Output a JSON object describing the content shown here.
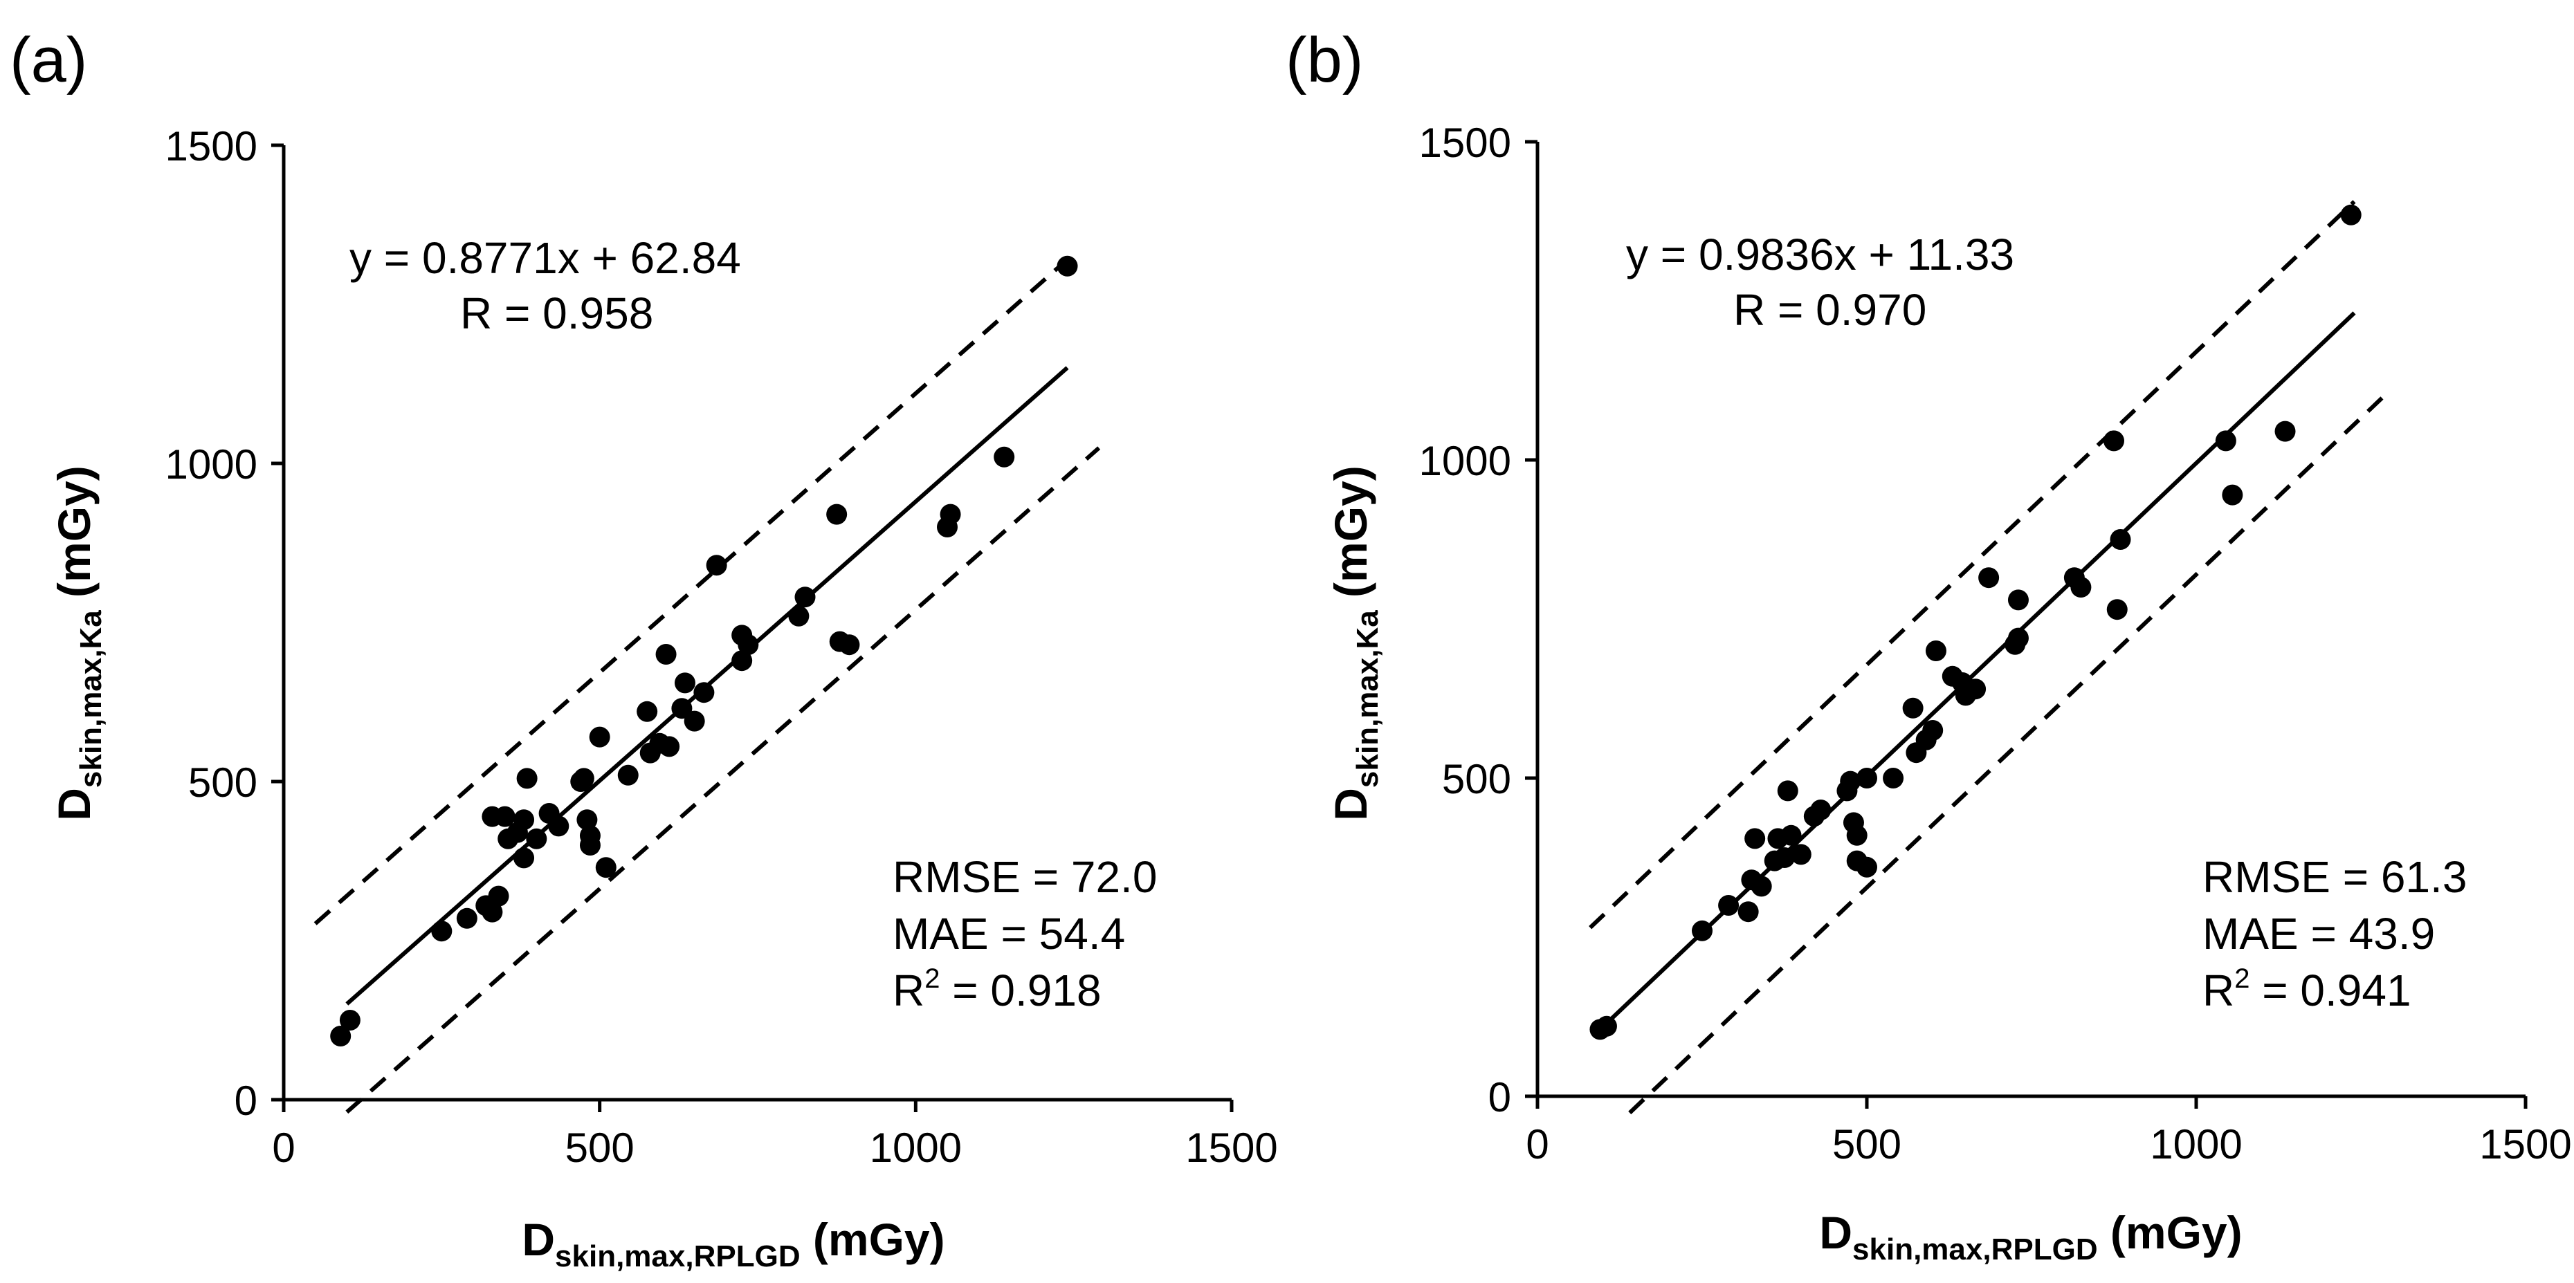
{
  "colors": {
    "ink": "#000000",
    "background": "#ffffff"
  },
  "chart_data": [
    {
      "type": "scatter",
      "panel_label": "(a)",
      "xlabel": {
        "main": "D",
        "sub": "skin,max,RPLGD",
        "unit": " (mGy)"
      },
      "ylabel": {
        "main": "D",
        "sub": "skin,max,Ka",
        "unit": " (mGy)"
      },
      "xlim": [
        0,
        1500
      ],
      "ylim": [
        0,
        1500
      ],
      "xticks": [
        "0",
        "500",
        "1000",
        "1500"
      ],
      "yticks": [
        "0",
        "500",
        "1000",
        "1500"
      ],
      "grid": false,
      "fit": {
        "slope": 0.8771,
        "intercept": 62.84,
        "x_range": [
          100,
          1240
        ]
      },
      "band": {
        "offset": 170,
        "upper_x_range": [
          50,
          1240
        ],
        "lower_x_range": [
          100,
          1290
        ]
      },
      "equation": "y = 0.8771x + 62.84",
      "r_text": "R = 0.958",
      "stats": {
        "rmse": "RMSE = 72.0",
        "mae": "MAE = 54.4",
        "r2_prefix": "R",
        "r2_sup": "2",
        "r2_suffix": " = 0.918"
      },
      "points": [
        {
          "x": 90,
          "y": 100
        },
        {
          "x": 105,
          "y": 125
        },
        {
          "x": 250,
          "y": 265
        },
        {
          "x": 290,
          "y": 285
        },
        {
          "x": 320,
          "y": 305
        },
        {
          "x": 330,
          "y": 295
        },
        {
          "x": 340,
          "y": 320
        },
        {
          "x": 330,
          "y": 445
        },
        {
          "x": 350,
          "y": 445
        },
        {
          "x": 355,
          "y": 410
        },
        {
          "x": 370,
          "y": 420
        },
        {
          "x": 380,
          "y": 380
        },
        {
          "x": 380,
          "y": 440
        },
        {
          "x": 385,
          "y": 505
        },
        {
          "x": 400,
          "y": 410
        },
        {
          "x": 420,
          "y": 450
        },
        {
          "x": 435,
          "y": 430
        },
        {
          "x": 470,
          "y": 500
        },
        {
          "x": 475,
          "y": 505
        },
        {
          "x": 480,
          "y": 440
        },
        {
          "x": 485,
          "y": 415
        },
        {
          "x": 485,
          "y": 400
        },
        {
          "x": 500,
          "y": 570
        },
        {
          "x": 510,
          "y": 365
        },
        {
          "x": 545,
          "y": 510
        },
        {
          "x": 575,
          "y": 610
        },
        {
          "x": 580,
          "y": 545
        },
        {
          "x": 595,
          "y": 560
        },
        {
          "x": 605,
          "y": 700
        },
        {
          "x": 610,
          "y": 555
        },
        {
          "x": 630,
          "y": 615
        },
        {
          "x": 635,
          "y": 655
        },
        {
          "x": 650,
          "y": 595
        },
        {
          "x": 665,
          "y": 640
        },
        {
          "x": 685,
          "y": 840
        },
        {
          "x": 725,
          "y": 690
        },
        {
          "x": 725,
          "y": 730
        },
        {
          "x": 735,
          "y": 715
        },
        {
          "x": 815,
          "y": 760
        },
        {
          "x": 825,
          "y": 790
        },
        {
          "x": 875,
          "y": 920
        },
        {
          "x": 880,
          "y": 720
        },
        {
          "x": 895,
          "y": 715
        },
        {
          "x": 1050,
          "y": 900
        },
        {
          "x": 1055,
          "y": 920
        },
        {
          "x": 1140,
          "y": 1010
        },
        {
          "x": 1240,
          "y": 1310
        }
      ]
    },
    {
      "type": "scatter",
      "panel_label": "(b)",
      "xlabel": {
        "main": "D",
        "sub": "skin,max,RPLGD",
        "unit": " (mGy)"
      },
      "ylabel": {
        "main": "D",
        "sub": "skin,max,Ka",
        "unit": " (mGy)"
      },
      "xlim": [
        0,
        1500
      ],
      "ylim": [
        0,
        1500
      ],
      "xticks": [
        "0",
        "500",
        "1000",
        "1500"
      ],
      "yticks": [
        "0",
        "500",
        "1000",
        "1500"
      ],
      "grid": false,
      "fit": {
        "slope": 0.9836,
        "intercept": 11.33,
        "x_range": [
          95,
          1240
        ]
      },
      "band": {
        "offset": 175,
        "upper_x_range": [
          80,
          1240
        ],
        "lower_x_range": [
          140,
          1290
        ]
      },
      "equation": "y = 0.9836x + 11.33",
      "r_text": "R = 0.970",
      "stats": {
        "rmse": "RMSE = 61.3",
        "mae": "MAE = 43.9",
        "r2_prefix": "R",
        "r2_sup": "2",
        "r2_suffix": " = 0.941"
      },
      "points": [
        {
          "x": 95,
          "y": 105
        },
        {
          "x": 105,
          "y": 110
        },
        {
          "x": 250,
          "y": 260
        },
        {
          "x": 290,
          "y": 300
        },
        {
          "x": 320,
          "y": 290
        },
        {
          "x": 325,
          "y": 340
        },
        {
          "x": 330,
          "y": 405
        },
        {
          "x": 340,
          "y": 330
        },
        {
          "x": 360,
          "y": 370
        },
        {
          "x": 365,
          "y": 405
        },
        {
          "x": 375,
          "y": 375
        },
        {
          "x": 380,
          "y": 480
        },
        {
          "x": 385,
          "y": 410
        },
        {
          "x": 400,
          "y": 380
        },
        {
          "x": 420,
          "y": 440
        },
        {
          "x": 430,
          "y": 450
        },
        {
          "x": 470,
          "y": 480
        },
        {
          "x": 475,
          "y": 495
        },
        {
          "x": 480,
          "y": 430
        },
        {
          "x": 485,
          "y": 410
        },
        {
          "x": 485,
          "y": 370
        },
        {
          "x": 500,
          "y": 500
        },
        {
          "x": 500,
          "y": 360
        },
        {
          "x": 540,
          "y": 500
        },
        {
          "x": 570,
          "y": 610
        },
        {
          "x": 575,
          "y": 540
        },
        {
          "x": 590,
          "y": 560
        },
        {
          "x": 600,
          "y": 575
        },
        {
          "x": 605,
          "y": 700
        },
        {
          "x": 630,
          "y": 660
        },
        {
          "x": 645,
          "y": 650
        },
        {
          "x": 650,
          "y": 630
        },
        {
          "x": 665,
          "y": 640
        },
        {
          "x": 685,
          "y": 815
        },
        {
          "x": 725,
          "y": 710
        },
        {
          "x": 730,
          "y": 720
        },
        {
          "x": 730,
          "y": 780
        },
        {
          "x": 815,
          "y": 815
        },
        {
          "x": 825,
          "y": 800
        },
        {
          "x": 875,
          "y": 1030
        },
        {
          "x": 880,
          "y": 765
        },
        {
          "x": 885,
          "y": 875
        },
        {
          "x": 1045,
          "y": 1030
        },
        {
          "x": 1055,
          "y": 945
        },
        {
          "x": 1135,
          "y": 1045
        },
        {
          "x": 1235,
          "y": 1385
        }
      ]
    }
  ]
}
